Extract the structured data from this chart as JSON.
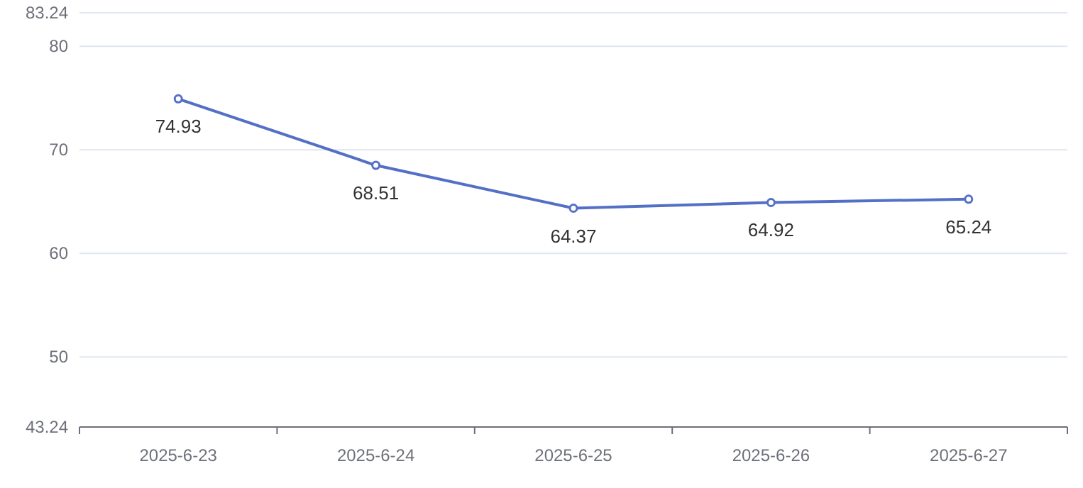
{
  "chart_data": {
    "type": "line",
    "categories": [
      "2025-6-23",
      "2025-6-24",
      "2025-6-25",
      "2025-6-26",
      "2025-6-27"
    ],
    "series": [
      {
        "color": "#5470c6",
        "values": [
          74.93,
          68.51,
          64.37,
          64.92,
          65.24
        ]
      }
    ],
    "ylim": [
      43.24,
      83.24
    ],
    "yticks": [
      43.24,
      50,
      60,
      70,
      80,
      83.24
    ],
    "grid": "y",
    "marker": "circle",
    "data_labels": true
  }
}
